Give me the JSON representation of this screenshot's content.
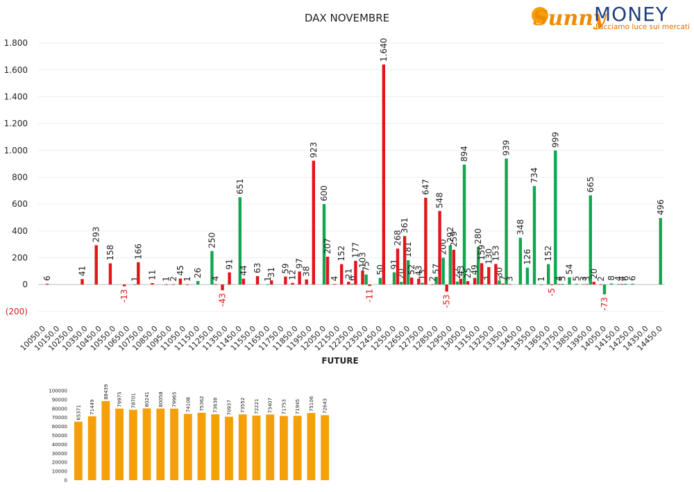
{
  "logo": {
    "brand": "Sunny",
    "name": "MONEY",
    "tagline": "Facciamo luce sui mercati"
  },
  "chart_data": [
    {
      "type": "bar",
      "title": "DAX NOVEMBRE",
      "categories": [
        "10050.0",
        null,
        "10150.0",
        null,
        "10250.0",
        null,
        "10350.0",
        null,
        "10450.0",
        null,
        "10550.0",
        null,
        "10650.0",
        null,
        "10750.0",
        null,
        "10850.0",
        null,
        "10950.0",
        null,
        "11050.0",
        null,
        "11150.0",
        null,
        "11250.0",
        null,
        "11350.0",
        null,
        "11450.0",
        null,
        "11550.0",
        null,
        "11650.0",
        null,
        "11750.0",
        null,
        "11850.0",
        null,
        "11950.0",
        null,
        "12050.0",
        null,
        "12150.0",
        null,
        "12250.0",
        null,
        "12350.0",
        null,
        "12450.0",
        null,
        "12550.0",
        null,
        "12650.0",
        null,
        "12750.0",
        null,
        "12850.0",
        null,
        "12950.0",
        null,
        "13050.0",
        null,
        "13150.0",
        null,
        "13250.0",
        null,
        "13350.0",
        null,
        "13450.0",
        null,
        "13550.0",
        null,
        "13650.0",
        null,
        "13750.0",
        null,
        "13850.0",
        null,
        "13950.0",
        null,
        "14050.0",
        null,
        "14150.0",
        null,
        "14250.0",
        null,
        "14350.0",
        null,
        "14450.0"
      ],
      "series": [
        {
          "color": "#12a650",
          "values": [
            null,
            null,
            null,
            null,
            null,
            null,
            null,
            null,
            null,
            null,
            null,
            null,
            null,
            1,
            null,
            null,
            null,
            null,
            null,
            null,
            null,
            null,
            26,
            null,
            250,
            null,
            null,
            null,
            651,
            null,
            null,
            null,
            1,
            null,
            null,
            null,
            null,
            null,
            null,
            null,
            600,
            null,
            null,
            null,
            6,
            null,
            75,
            null,
            50,
            null,
            91,
            20,
            181,
            null,
            13,
            null,
            57,
            200,
            292,
            22,
            894,
            null,
            280,
            3,
            null,
            30,
            939,
            null,
            348,
            126,
            734,
            1,
            152,
            999,
            5,
            54,
            5,
            3,
            665,
            null,
            -73,
            8,
            4,
            6,
            6,
            null,
            null,
            null,
            496
          ]
        },
        {
          "color": "#e0161b",
          "values": [
            6,
            null,
            null,
            null,
            null,
            41,
            null,
            293,
            null,
            158,
            null,
            -13,
            null,
            166,
            null,
            11,
            null,
            1,
            2,
            45,
            1,
            null,
            null,
            null,
            4,
            -43,
            91,
            null,
            44,
            null,
            63,
            null,
            31,
            null,
            59,
            12,
            97,
            38,
            923,
            null,
            207,
            4,
            152,
            21,
            177,
            103,
            -11,
            null,
            1640,
            null,
            268,
            361,
            52,
            43,
            647,
            2,
            548,
            -53,
            259,
            43,
            25,
            49,
            159,
            130,
            153,
            7,
            3,
            null,
            null,
            null,
            null,
            null,
            -5,
            4,
            null,
            null,
            null,
            3,
            20,
            2,
            null,
            null,
            4,
            null,
            null,
            null,
            null,
            null,
            null
          ],
          "value_labels": [
            null,
            null,
            null,
            null,
            null,
            null,
            null,
            null,
            null,
            null,
            null,
            null,
            null,
            null,
            null,
            null,
            null,
            null,
            null,
            null,
            null,
            null,
            null,
            null,
            null,
            null,
            null,
            null,
            null,
            null,
            null,
            null,
            null,
            null,
            null,
            null,
            null,
            null,
            null,
            null,
            null,
            null,
            null,
            null,
            null,
            null,
            null,
            null,
            "1.640",
            null,
            null,
            null,
            null,
            null,
            null,
            null,
            null,
            null,
            null,
            null,
            null,
            null,
            null,
            null,
            null,
            null,
            null,
            null,
            null,
            null,
            null,
            null,
            null,
            null,
            null,
            null,
            null,
            null,
            null,
            null,
            null,
            null,
            null,
            null,
            null,
            null,
            null,
            null,
            null
          ]
        }
      ],
      "ylim": [
        -200,
        1800
      ],
      "yticks": [
        {
          "value": -200,
          "label": "(200)"
        },
        0,
        {
          "value": 200,
          "label": "200"
        },
        {
          "value": 400,
          "label": "400"
        },
        {
          "value": 600,
          "label": "600"
        },
        {
          "value": 800,
          "label": "800"
        },
        {
          "value": 1000,
          "label": "1.000"
        },
        {
          "value": 1200,
          "label": "1.200"
        },
        {
          "value": 1400,
          "label": "1.400"
        },
        {
          "value": 1600,
          "label": "1.600"
        },
        {
          "value": 1800,
          "label": "1.800"
        }
      ],
      "grid": true
    },
    {
      "type": "bar",
      "title": "FUTURE",
      "color": "#f5a00a",
      "values": [
        65371,
        71449,
        88439,
        79975,
        78701,
        80241,
        80058,
        79965,
        74108,
        75362,
        73638,
        70937,
        73552,
        72221,
        73407,
        71753,
        71945,
        75106,
        72643
      ],
      "ylim": [
        0,
        100000
      ],
      "yticks": [
        0,
        10000,
        20000,
        30000,
        40000,
        50000,
        60000,
        70000,
        80000,
        90000,
        100000
      ],
      "grid": false
    }
  ]
}
